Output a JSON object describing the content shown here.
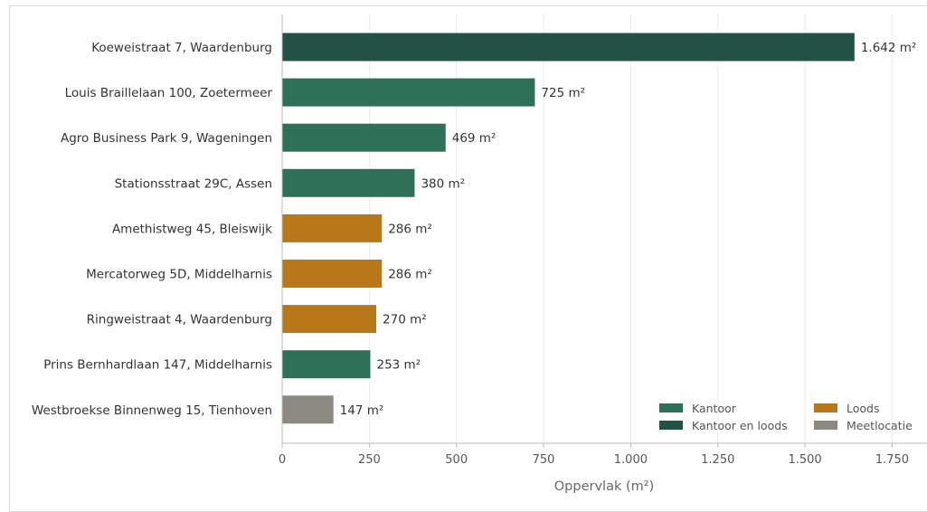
{
  "chart_data": {
    "type": "bar",
    "orientation": "horizontal",
    "categories": [
      "Koeweistraat 7, Waardenburg",
      "Louis Braillelaan 100, Zoetermeer",
      "Agro Business Park 9, Wageningen",
      "Stationsstraat 29C, Assen",
      "Amethistweg 45, Bleiswijk",
      "Mercatorweg 5D, Middelharnis",
      "Ringweistraat 4, Waardenburg",
      "Prins Bernhardlaan 147, Middelharnis",
      "Westbroekse Binnenweg 15, Tienhoven"
    ],
    "values": [
      1642,
      725,
      469,
      380,
      286,
      286,
      270,
      253,
      147
    ],
    "value_labels": [
      "1.642 m²",
      "725 m²",
      "469 m²",
      "380 m²",
      "286 m²",
      "286 m²",
      "270 m²",
      "253 m²",
      "147 m²"
    ],
    "bar_types": [
      "Kantoor en loods",
      "Kantoor",
      "Kantoor",
      "Kantoor",
      "Loods",
      "Loods",
      "Loods",
      "Kantoor",
      "Meetlocatie"
    ],
    "xlabel": "Oppervlak (m²)",
    "xlim": [
      0,
      1850
    ],
    "xticks": [
      0,
      250,
      500,
      750,
      1000,
      1250,
      1500,
      1750
    ],
    "xtick_labels": [
      "0",
      "250",
      "500",
      "750",
      "1.000",
      "1.250",
      "1.500",
      "1.750"
    ],
    "grid": "vertical",
    "legend": {
      "placement": "bottom-right",
      "columns": 2,
      "entries": [
        {
          "label": "Kantoor",
          "color": "#2e7058"
        },
        {
          "label": "Loods",
          "color": "#b87819"
        },
        {
          "label": "Kantoor en loods",
          "color": "#225243"
        },
        {
          "label": "Meetlocatie",
          "color": "#8a8a82"
        }
      ]
    },
    "colors": {
      "Kantoor": "#2e7058",
      "Kantoor en loods": "#225243",
      "Loods": "#b87819",
      "Meetlocatie": "#8a8a82"
    }
  }
}
